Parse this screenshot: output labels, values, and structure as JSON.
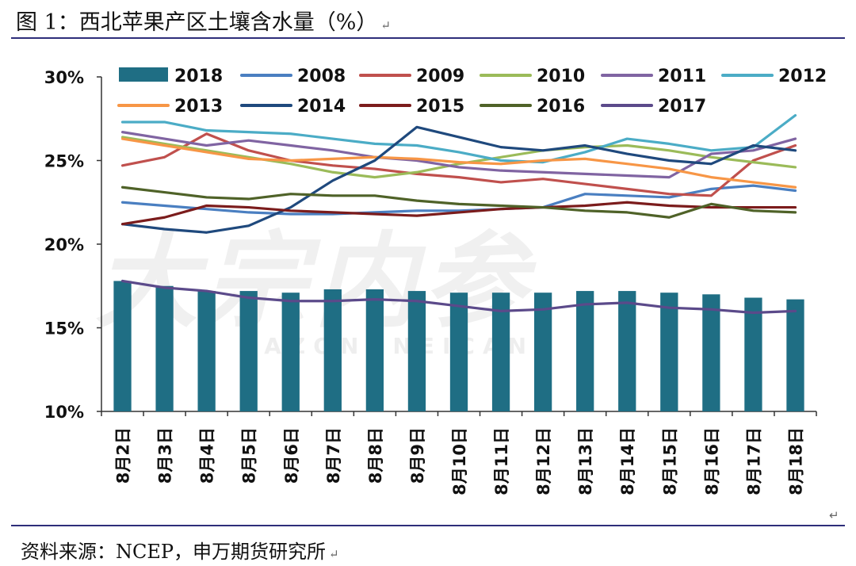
{
  "figure": {
    "title": "图 1：西北苹果产区土壤含水量（%）",
    "source": "资料来源：NCEP，申万期货研究所",
    "return_mark": "↵",
    "watermark": "大宗内参",
    "watermark_sub": "DAZONGNEICAN"
  },
  "colors": {
    "rule": "#2e2e7a",
    "bar": "#1f6e84"
  },
  "chart_data": {
    "type": "bar",
    "title": "图 1：西北苹果产区土壤含水量（%）",
    "xlabel": "",
    "ylabel": "",
    "ylim": [
      10,
      30
    ],
    "yticks": [
      "10%",
      "15%",
      "20%",
      "25%",
      "30%"
    ],
    "ytick_values": [
      10,
      15,
      20,
      25,
      30
    ],
    "categories": [
      "8月2日",
      "8月3日",
      "8月4日",
      "8月5日",
      "8月6日",
      "8月7日",
      "8月8日",
      "8月9日",
      "8月10日",
      "8月11日",
      "8月12日",
      "8月13日",
      "8月14日",
      "8月15日",
      "8月16日",
      "8月17日",
      "8月18日"
    ],
    "bar_series": {
      "name": "2018",
      "color": "#1f6e84",
      "values": [
        17.8,
        17.5,
        17.2,
        17.2,
        17.1,
        17.3,
        17.3,
        17.2,
        17.1,
        17.1,
        17.1,
        17.2,
        17.2,
        17.1,
        17.0,
        16.8,
        16.7
      ]
    },
    "line_series": [
      {
        "name": "2008",
        "color": "#4a7fc1",
        "values": [
          22.5,
          22.3,
          22.1,
          21.9,
          21.8,
          21.8,
          21.9,
          22.0,
          22.0,
          22.1,
          22.2,
          23.0,
          22.9,
          22.8,
          23.3,
          23.5,
          23.2
        ]
      },
      {
        "name": "2009",
        "color": "#c0504d",
        "values": [
          24.7,
          25.2,
          26.6,
          25.6,
          25.0,
          24.7,
          24.5,
          24.2,
          24.0,
          23.7,
          23.9,
          23.6,
          23.3,
          23.0,
          22.9,
          25.0,
          25.9
        ]
      },
      {
        "name": "2010",
        "color": "#9bbb59",
        "values": [
          26.4,
          26.0,
          25.6,
          25.2,
          24.8,
          24.3,
          24.0,
          24.3,
          24.8,
          25.2,
          25.6,
          25.8,
          25.9,
          25.6,
          25.2,
          24.9,
          24.6
        ]
      },
      {
        "name": "2011",
        "color": "#8064a2",
        "values": [
          26.7,
          26.3,
          25.9,
          26.2,
          25.9,
          25.6,
          25.2,
          25.0,
          24.6,
          24.4,
          24.3,
          24.2,
          24.1,
          24.0,
          25.4,
          25.6,
          26.3
        ]
      },
      {
        "name": "2012",
        "color": "#4bacc6",
        "values": [
          27.3,
          27.3,
          26.8,
          26.7,
          26.6,
          26.3,
          26.0,
          25.9,
          25.5,
          25.0,
          24.9,
          25.5,
          26.3,
          26.0,
          25.6,
          25.8,
          27.7
        ]
      },
      {
        "name": "2013",
        "color": "#f79646",
        "values": [
          26.3,
          25.9,
          25.5,
          25.1,
          25.0,
          25.1,
          25.2,
          25.1,
          24.9,
          24.8,
          25.0,
          25.1,
          24.8,
          24.5,
          24.0,
          23.7,
          23.4
        ]
      },
      {
        "name": "2014",
        "color": "#1f497d",
        "values": [
          21.2,
          20.9,
          20.7,
          21.1,
          22.2,
          23.8,
          25.0,
          27.0,
          26.4,
          25.8,
          25.6,
          25.9,
          25.4,
          25.0,
          24.8,
          25.9,
          25.6
        ]
      },
      {
        "name": "2015",
        "color": "#7b1c1c",
        "values": [
          21.2,
          21.6,
          22.3,
          22.2,
          22.0,
          21.9,
          21.8,
          21.7,
          21.9,
          22.1,
          22.2,
          22.3,
          22.5,
          22.3,
          22.2,
          22.2,
          22.2
        ]
      },
      {
        "name": "2016",
        "color": "#4f6228",
        "values": [
          23.4,
          23.1,
          22.8,
          22.7,
          23.0,
          22.9,
          22.9,
          22.6,
          22.4,
          22.3,
          22.2,
          22.0,
          21.9,
          21.6,
          22.4,
          22.0,
          21.9
        ]
      },
      {
        "name": "2017",
        "color": "#5b4a8a",
        "values": [
          17.8,
          17.4,
          17.2,
          16.8,
          16.6,
          16.6,
          16.7,
          16.6,
          16.3,
          16.0,
          16.1,
          16.4,
          16.5,
          16.2,
          16.1,
          15.9,
          16.0
        ]
      }
    ],
    "legend": {
      "placement": "top",
      "entries": [
        "2018",
        "2008",
        "2009",
        "2010",
        "2011",
        "2012",
        "2013",
        "2014",
        "2015",
        "2016",
        "2017"
      ]
    },
    "grid": false
  }
}
